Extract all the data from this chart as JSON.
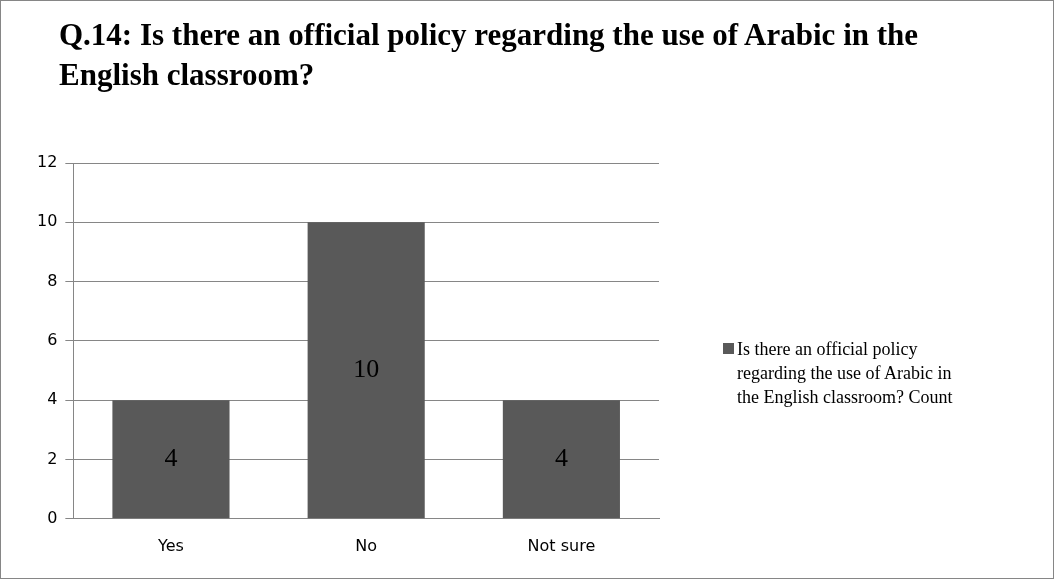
{
  "chart_data": {
    "type": "bar",
    "title": "Q.14: Is there an official policy regarding the use of Arabic in the English classroom?",
    "categories": [
      "Yes",
      "No",
      "Not sure"
    ],
    "series": [
      {
        "name": "Is there an official policy regarding the use of Arabic in the English classroom? Count",
        "color": "#595959",
        "values": [
          4,
          10,
          4
        ]
      }
    ],
    "ylim": [
      0,
      12
    ],
    "yticks": [
      0,
      2,
      4,
      6,
      8,
      10,
      12
    ],
    "grid": "y",
    "legend": "right",
    "data_labels": true
  }
}
